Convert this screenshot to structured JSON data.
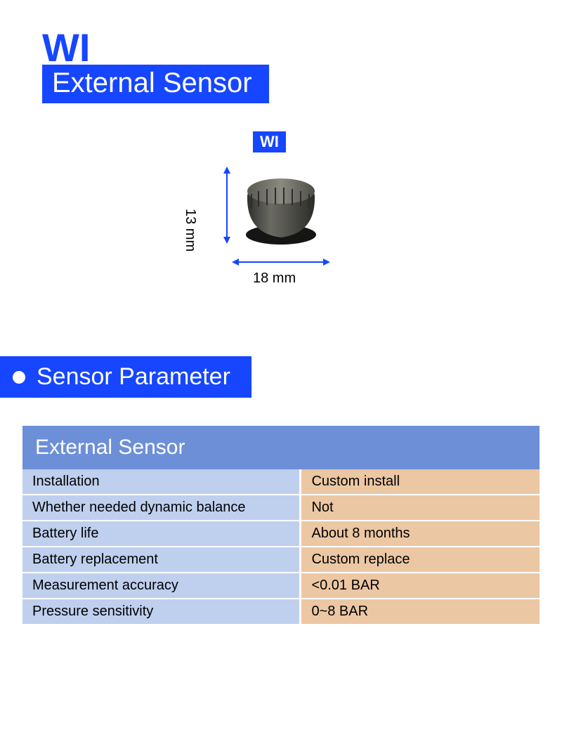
{
  "colors": {
    "brand_blue": "#1646ff",
    "text_blue": "#1646ff",
    "arrow_blue": "#1646ff",
    "section_blue": "#1646ff",
    "table_header_bg": "#6d8fd8",
    "table_header_text": "#ffffff",
    "col1_bg": "#bfcfee",
    "col2_bg": "#ecc7a3",
    "text_dark": "#000000"
  },
  "header": {
    "wi": "WI",
    "subtitle": "External Sensor"
  },
  "diagram": {
    "badge": "WI",
    "height_label": "13 mm",
    "width_label": "18 mm"
  },
  "section": {
    "title": "Sensor Parameter"
  },
  "table": {
    "title": "External Sensor",
    "rows": [
      {
        "label": "Installation",
        "value": "Custom install"
      },
      {
        "label": "Whether needed dynamic balance",
        "value": "Not"
      },
      {
        "label": "Battery life",
        "value": "About 8 months"
      },
      {
        "label": "Battery replacement",
        "value": "Custom replace"
      },
      {
        "label": "Measurement accuracy",
        "value": "<0.01 BAR"
      },
      {
        "label": "Pressure sensitivity",
        "value": "0~8 BAR"
      }
    ]
  }
}
